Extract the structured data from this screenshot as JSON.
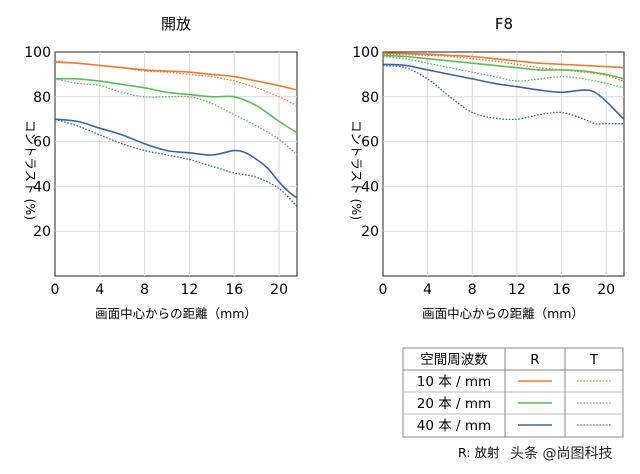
{
  "chart_data": [
    {
      "type": "line",
      "title": "開放",
      "xlabel": "画面中心からの距離（mm）",
      "ylabel": "コントラスト (%)",
      "xlim": [
        0,
        21.6
      ],
      "ylim": [
        0,
        100
      ],
      "xticks": [
        "0",
        "4",
        "8",
        "12",
        "16",
        "20"
      ],
      "yticks": [
        "20",
        "40",
        "60",
        "80",
        "100"
      ],
      "grid": true,
      "series": [
        {
          "name": "10本/mm R",
          "x": [
            0,
            2,
            4,
            6,
            8,
            10,
            12,
            14,
            16,
            18,
            20,
            21.6
          ],
          "values": [
            95.5,
            95,
            94,
            93,
            92,
            91.5,
            91,
            90,
            89,
            87,
            85,
            83
          ]
        },
        {
          "name": "10本/mm T",
          "x": [
            0,
            2,
            4,
            6,
            8,
            10,
            12,
            14,
            16,
            18,
            20,
            21.6
          ],
          "values": [
            96,
            95,
            94,
            93,
            91.5,
            91,
            90,
            89,
            87,
            84,
            80,
            76
          ]
        },
        {
          "name": "20本/mm R",
          "x": [
            0,
            2,
            4,
            6,
            8,
            10,
            12,
            14,
            16,
            18,
            20,
            21.6
          ],
          "values": [
            88,
            88,
            87,
            85.5,
            84,
            82,
            81,
            80,
            80,
            76,
            69,
            64
          ]
        },
        {
          "name": "20本/mm T",
          "x": [
            0,
            2,
            4,
            6,
            8,
            10,
            12,
            14,
            16,
            18,
            20,
            21.6
          ],
          "values": [
            88,
            86,
            85,
            82,
            80,
            80,
            80,
            77,
            72,
            67,
            61,
            54
          ]
        },
        {
          "name": "40本/mm R",
          "x": [
            0,
            2,
            4,
            6,
            8,
            10,
            12,
            14,
            16,
            17,
            18,
            19,
            20,
            21,
            21.6
          ],
          "values": [
            70,
            69,
            66,
            63,
            59,
            56,
            55,
            54,
            56,
            55,
            52,
            48,
            42,
            37,
            35
          ]
        },
        {
          "name": "40本/mm T",
          "x": [
            0,
            2,
            4,
            6,
            8,
            10,
            12,
            14,
            16,
            18,
            20,
            21.6
          ],
          "values": [
            70,
            67,
            63,
            59,
            56,
            54,
            52,
            49,
            46,
            44,
            39,
            31
          ]
        }
      ]
    },
    {
      "type": "line",
      "title": "F8",
      "xlabel": "画面中心からの距離（mm）",
      "ylabel": "コントラスト (%)",
      "xlim": [
        0,
        21.6
      ],
      "ylim": [
        0,
        100
      ],
      "xticks": [
        "0",
        "4",
        "8",
        "12",
        "16",
        "20"
      ],
      "yticks": [
        "20",
        "40",
        "60",
        "80",
        "100"
      ],
      "grid": true,
      "series": [
        {
          "name": "10本/mm R",
          "x": [
            0,
            2,
            4,
            6,
            8,
            10,
            12,
            14,
            16,
            18,
            20,
            21.6
          ],
          "values": [
            99.5,
            99.3,
            99,
            98.5,
            98,
            97,
            96,
            95,
            94.5,
            94,
            93.5,
            93
          ]
        },
        {
          "name": "10本/mm T",
          "x": [
            0,
            2,
            4,
            6,
            8,
            10,
            12,
            14,
            16,
            18,
            20,
            21.6
          ],
          "values": [
            99,
            98.8,
            98.5,
            98,
            97,
            96,
            94.5,
            93,
            92,
            91,
            89.5,
            87
          ]
        },
        {
          "name": "20本/mm R",
          "x": [
            0,
            2,
            4,
            6,
            8,
            10,
            12,
            14,
            16,
            18,
            20,
            21.6
          ],
          "values": [
            98.5,
            98,
            97,
            96,
            95,
            94,
            93,
            92,
            92,
            91.5,
            90,
            88
          ]
        },
        {
          "name": "20本/mm T",
          "x": [
            0,
            2,
            4,
            6,
            8,
            10,
            12,
            14,
            16,
            18,
            20,
            21.6
          ],
          "values": [
            98,
            97,
            95,
            93,
            91,
            89,
            87,
            88,
            89,
            88,
            86,
            84
          ]
        },
        {
          "name": "40本/mm R",
          "x": [
            0,
            2,
            4,
            6,
            8,
            10,
            12,
            14,
            16,
            18,
            19,
            20,
            21,
            21.6
          ],
          "values": [
            94.5,
            94,
            92,
            90,
            88,
            86,
            84.5,
            83,
            82,
            83,
            82,
            78,
            73,
            70
          ]
        },
        {
          "name": "40本/mm T",
          "x": [
            0,
            2,
            4,
            6,
            8,
            10,
            12,
            14,
            16,
            18,
            19,
            20,
            21.6
          ],
          "values": [
            94,
            93,
            88,
            80,
            73,
            70.5,
            70,
            72,
            73,
            70,
            68,
            68,
            68
          ]
        }
      ]
    }
  ],
  "legend": {
    "header": "空間周波数",
    "col_r": "R",
    "col_t": "T",
    "rows": [
      "10 本 / mm",
      "20 本 / mm",
      "40 本 / mm"
    ],
    "caption": "R: 放射"
  },
  "watermark": "头条 @尚图科技",
  "colors": {
    "c10": "#ec7a33",
    "c20": "#5dbb5a",
    "c40": "#3a63ac",
    "grid": "#d9d9d9",
    "axis": "#231f20"
  }
}
